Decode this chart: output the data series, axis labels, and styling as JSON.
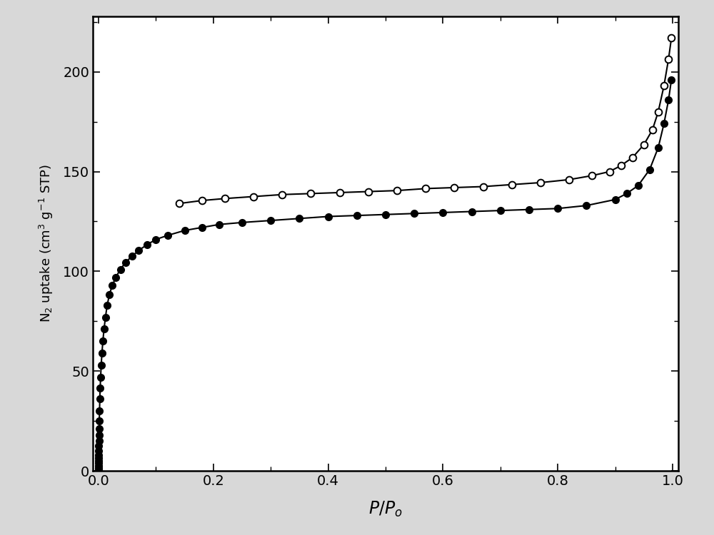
{
  "title": "",
  "xlabel": "$\\mathit{P/P_o}$",
  "ylabel": "N$_2$ uptake (cm$^3$ g$^{-1}$ STP)",
  "xlim": [
    -0.01,
    1.01
  ],
  "ylim": [
    0,
    228
  ],
  "background_color": "#d8d8d8",
  "plot_background": "#ffffff",
  "adsorption_x": [
    1e-06,
    1e-05,
    2e-05,
    4e-05,
    7e-05,
    0.0001,
    0.00015,
    0.0002,
    0.0003,
    0.00045,
    0.0006,
    0.0008,
    0.001,
    0.0013,
    0.0017,
    0.0022,
    0.0028,
    0.0036,
    0.0046,
    0.0059,
    0.0075,
    0.0095,
    0.012,
    0.015,
    0.019,
    0.024,
    0.03,
    0.038,
    0.047,
    0.058,
    0.07,
    0.085,
    0.1,
    0.12,
    0.15,
    0.18,
    0.21,
    0.25,
    0.3,
    0.35,
    0.4,
    0.45,
    0.5,
    0.55,
    0.6,
    0.65,
    0.7,
    0.75,
    0.8,
    0.85,
    0.9,
    0.92,
    0.94,
    0.96,
    0.975,
    0.985,
    0.993,
    0.998
  ],
  "adsorption_y": [
    0.5,
    1.0,
    1.5,
    2.5,
    3.8,
    5.0,
    6.5,
    8.0,
    10.0,
    12.5,
    15.0,
    18.0,
    21.0,
    25.0,
    30.0,
    36.0,
    41.5,
    47.0,
    53.0,
    59.0,
    65.0,
    71.0,
    77.0,
    83.0,
    88.5,
    93.0,
    97.0,
    101.0,
    104.5,
    107.5,
    110.5,
    113.5,
    116.0,
    118.0,
    120.5,
    122.0,
    123.5,
    124.5,
    125.5,
    126.5,
    127.5,
    128.0,
    128.5,
    129.0,
    129.5,
    130.0,
    130.5,
    131.0,
    131.5,
    133.0,
    136.0,
    139.0,
    143.0,
    151.0,
    162.0,
    174.0,
    186.0,
    196.0
  ],
  "desorption_x": [
    0.14,
    0.18,
    0.22,
    0.27,
    0.32,
    0.37,
    0.42,
    0.47,
    0.52,
    0.57,
    0.62,
    0.67,
    0.72,
    0.77,
    0.82,
    0.86,
    0.89,
    0.91,
    0.93,
    0.95,
    0.965,
    0.975,
    0.985,
    0.993,
    0.998
  ],
  "desorption_y": [
    134.0,
    135.5,
    136.5,
    137.5,
    138.5,
    139.0,
    139.5,
    140.0,
    140.5,
    141.5,
    142.0,
    142.5,
    143.5,
    144.5,
    146.0,
    148.0,
    150.0,
    153.0,
    157.0,
    163.5,
    171.0,
    180.0,
    193.0,
    206.5,
    217.0
  ],
  "line_color": "#000000",
  "fill_marker_color": "#000000",
  "open_marker_color": "#ffffff",
  "marker_size": 7,
  "linewidth": 1.5,
  "xticks": [
    0.0,
    0.2,
    0.4,
    0.6,
    0.8,
    1.0
  ],
  "yticks": [
    0,
    50,
    100,
    150,
    200
  ],
  "tick_labelsize": 14,
  "xlabel_fontsize": 17,
  "ylabel_fontsize": 13
}
